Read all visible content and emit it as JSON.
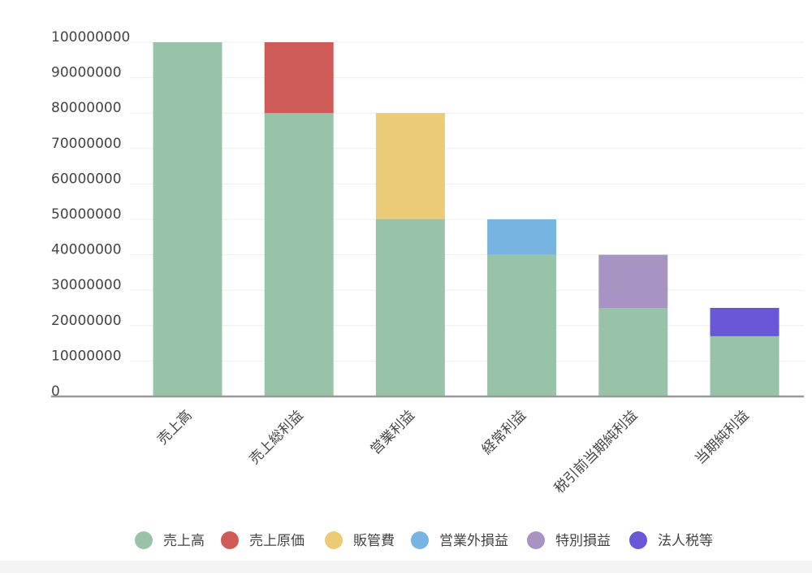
{
  "chart_data": {
    "type": "bar",
    "stacked": true,
    "categories": [
      "売上高",
      "売上総利益",
      "営業利益",
      "経常利益",
      "税引前当期純利益",
      "当期純利益"
    ],
    "series": [
      {
        "name": "売上高",
        "color": "#99c3a8",
        "values": [
          100000000,
          80000000,
          50000000,
          40000000,
          25000000,
          17000000
        ]
      },
      {
        "name": "売上原価",
        "color": "#cf5b58",
        "values": [
          0,
          20000000,
          0,
          0,
          0,
          0
        ]
      },
      {
        "name": "販管費",
        "color": "#ebcb76",
        "values": [
          0,
          0,
          30000000,
          0,
          0,
          0
        ]
      },
      {
        "name": "営業外損益",
        "color": "#78b4e1",
        "values": [
          0,
          0,
          0,
          10000000,
          0,
          0
        ]
      },
      {
        "name": "特別損益",
        "color": "#a794c3",
        "values": [
          0,
          0,
          0,
          0,
          15000000,
          0
        ]
      },
      {
        "name": "法人税等",
        "color": "#6a57d8",
        "values": [
          0,
          0,
          0,
          0,
          0,
          8000000
        ]
      }
    ],
    "yticks": [
      "0",
      "10000000",
      "20000000",
      "30000000",
      "40000000",
      "50000000",
      "60000000",
      "70000000",
      "80000000",
      "90000000",
      "100000000"
    ],
    "ylim": [
      0,
      100000000
    ],
    "grid": true,
    "legend_position": "bottom",
    "title": "",
    "xlabel": "",
    "ylabel": ""
  }
}
